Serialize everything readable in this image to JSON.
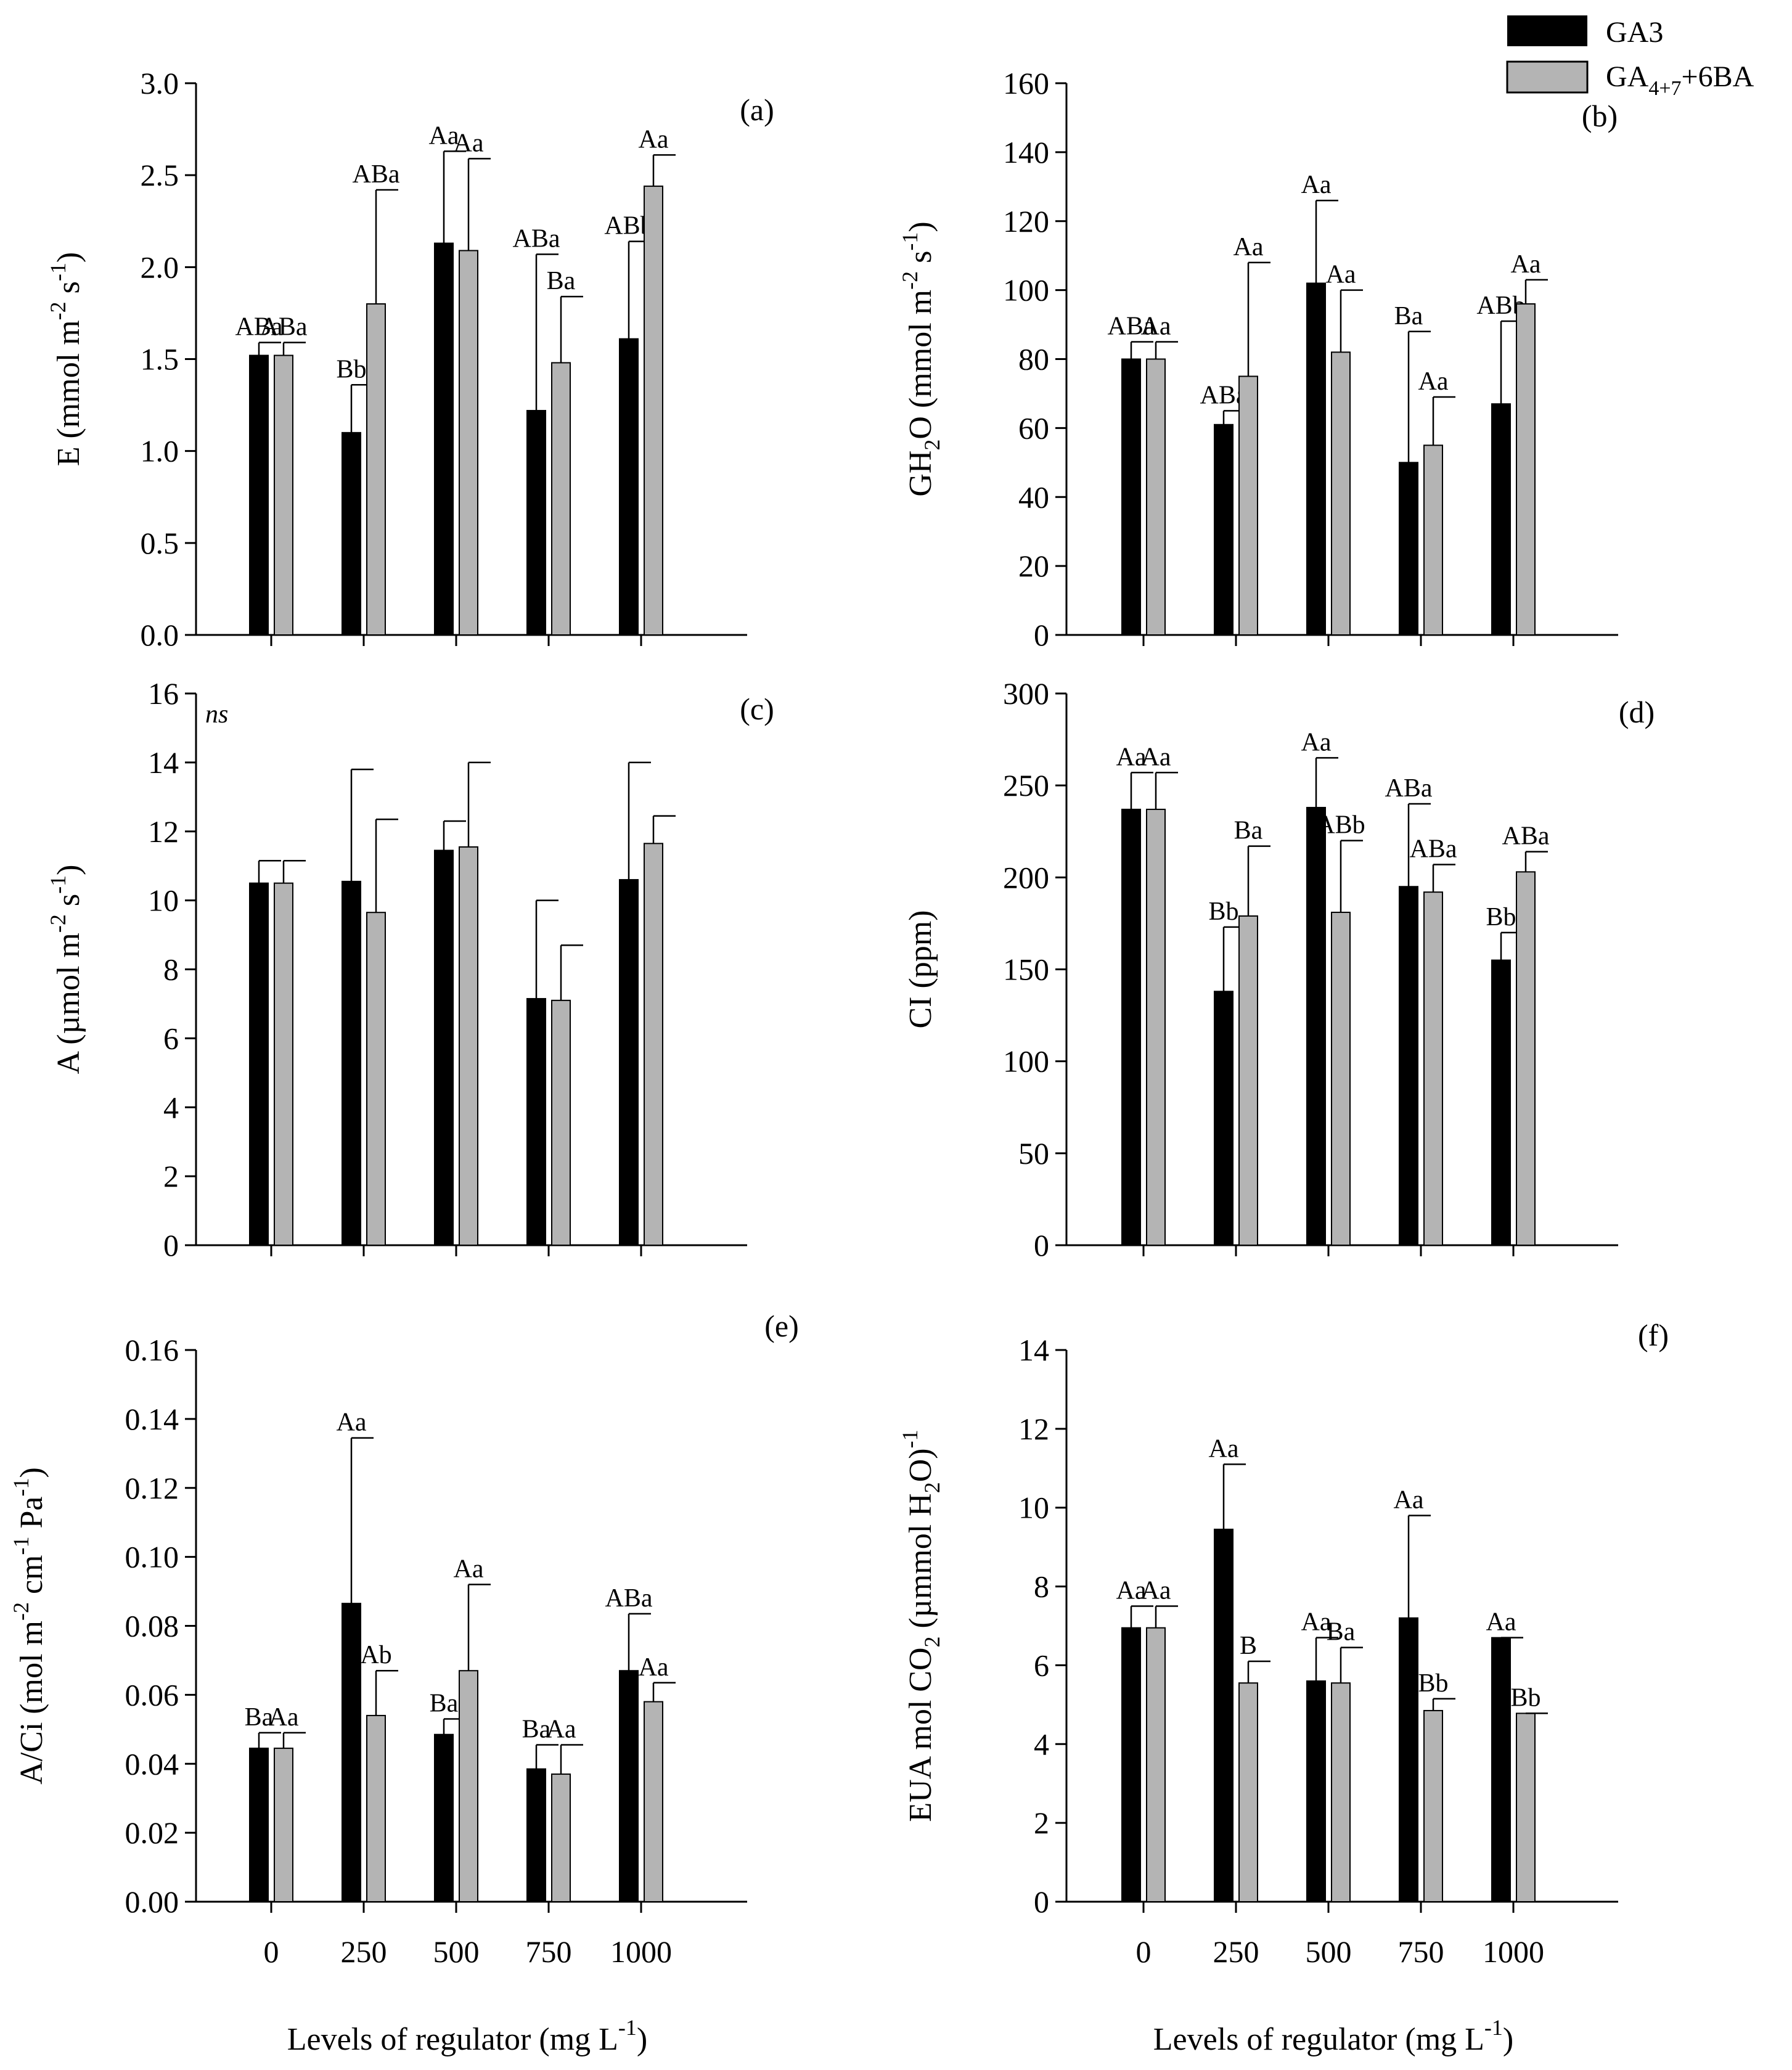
{
  "legend": {
    "series1": "GA3",
    "series2_main": "GA",
    "series2_sub": "4+7",
    "series2_rest": "+6BA",
    "colors": {
      "GA3": "#000000",
      "GA47_6BA": "#b4b4b4"
    }
  },
  "x_axis_title": {
    "main": "Levels of regulator (mg L",
    "sup": "-1",
    "close": ")"
  },
  "chart_data": [
    {
      "id": "a",
      "type": "bar",
      "letter": "(a)",
      "note": "",
      "ylabel": [
        [
          "E (mmol m",
          ""
        ],
        [
          "-2",
          "sup"
        ],
        [
          " s",
          ""
        ],
        [
          "-1",
          "sup"
        ],
        [
          ")",
          ""
        ]
      ],
      "categories": [
        "0",
        "250",
        "500",
        "750",
        "1000"
      ],
      "ylim": [
        0,
        3.0
      ],
      "yticks": [
        "0.0",
        "0.5",
        "1.0",
        "1.5",
        "2.0",
        "2.5",
        "3.0"
      ],
      "show_xticklabels": false,
      "series": [
        {
          "name": "GA3",
          "values": [
            1.52,
            1.1,
            2.13,
            1.22,
            1.61
          ],
          "errors": [
            0.07,
            0.26,
            0.5,
            0.85,
            0.53
          ],
          "labels": [
            "ABa",
            "Bb",
            "Aa",
            "ABa",
            "ABb"
          ]
        },
        {
          "name": "GA4+7+6BA",
          "values": [
            1.52,
            1.8,
            2.09,
            1.48,
            2.44
          ],
          "errors": [
            0.07,
            0.62,
            0.5,
            0.36,
            0.17
          ],
          "labels": [
            "ABa",
            "ABa",
            "Aa",
            "Ba",
            "Aa"
          ]
        }
      ]
    },
    {
      "id": "b",
      "type": "bar",
      "letter": "(b)",
      "note": "",
      "ylabel": [
        [
          "GH",
          ""
        ],
        [
          "2",
          "sub"
        ],
        [
          "O (mmol m",
          ""
        ],
        [
          "-2",
          "sup"
        ],
        [
          " s",
          ""
        ],
        [
          "-1",
          "sup"
        ],
        [
          ")",
          ""
        ]
      ],
      "categories": [
        "0",
        "250",
        "500",
        "750",
        "1000"
      ],
      "ylim": [
        0,
        160
      ],
      "yticks": [
        "0",
        "20",
        "40",
        "60",
        "80",
        "100",
        "120",
        "140",
        "160"
      ],
      "show_xticklabels": false,
      "series": [
        {
          "name": "GA3",
          "values": [
            80,
            61,
            102,
            50,
            67
          ],
          "errors": [
            5,
            4,
            24,
            38,
            24
          ],
          "labels": [
            "ABa",
            "ABa",
            "Aa",
            "Ba",
            "ABb"
          ]
        },
        {
          "name": "GA4+7+6BA",
          "values": [
            80,
            75,
            82,
            55,
            96
          ],
          "errors": [
            5,
            33,
            18,
            14,
            7
          ],
          "labels": [
            "Aa",
            "Aa",
            "Aa",
            "Aa",
            "Aa"
          ]
        }
      ]
    },
    {
      "id": "c",
      "type": "bar",
      "letter": "(c)",
      "note": "ns",
      "ylabel": [
        [
          "A (µmol m",
          ""
        ],
        [
          "-2",
          "sup"
        ],
        [
          " s",
          ""
        ],
        [
          "-1",
          "sup"
        ],
        [
          ")",
          ""
        ]
      ],
      "categories": [
        "0",
        "250",
        "500",
        "750",
        "1000"
      ],
      "ylim": [
        0,
        16
      ],
      "yticks": [
        "0",
        "2",
        "4",
        "6",
        "8",
        "10",
        "12",
        "14",
        "16"
      ],
      "show_xticklabels": false,
      "series": [
        {
          "name": "GA3",
          "values": [
            10.5,
            10.55,
            11.45,
            7.15,
            10.6
          ],
          "errors": [
            0.65,
            3.25,
            0.85,
            2.85,
            3.4
          ],
          "labels": [
            "",
            "",
            "",
            "",
            ""
          ]
        },
        {
          "name": "GA4+7+6BA",
          "values": [
            10.5,
            9.65,
            11.55,
            7.1,
            11.65
          ],
          "errors": [
            0.65,
            2.7,
            2.45,
            1.6,
            0.8
          ],
          "labels": [
            "",
            "",
            "",
            "",
            ""
          ]
        }
      ]
    },
    {
      "id": "d",
      "type": "bar",
      "letter": "(d)",
      "note": "",
      "ylabel": [
        [
          "CI (ppm)",
          ""
        ]
      ],
      "categories": [
        "0",
        "250",
        "500",
        "750",
        "1000"
      ],
      "ylim": [
        0,
        300
      ],
      "yticks": [
        "0",
        "50",
        "100",
        "150",
        "200",
        "250",
        "300"
      ],
      "show_xticklabels": false,
      "series": [
        {
          "name": "GA3",
          "values": [
            237,
            138,
            238,
            195,
            155
          ],
          "errors": [
            20,
            35,
            27,
            45,
            15
          ],
          "labels": [
            "Aa",
            "Bb",
            "Aa",
            "ABa",
            "Bb"
          ]
        },
        {
          "name": "GA4+7+6BA",
          "values": [
            237,
            179,
            181,
            192,
            203
          ],
          "errors": [
            20,
            38,
            39,
            15,
            11
          ],
          "labels": [
            "Aa",
            "Ba",
            "ABb",
            "ABa",
            "ABa"
          ]
        }
      ]
    },
    {
      "id": "e",
      "type": "bar",
      "letter": "(e)",
      "note": "",
      "ylabel": [
        [
          "A/Ci (mol m",
          ""
        ],
        [
          "-2",
          "sup"
        ],
        [
          " cm",
          ""
        ],
        [
          "-1",
          "sup"
        ],
        [
          " Pa",
          ""
        ],
        [
          "-1",
          "sup"
        ],
        [
          ")",
          ""
        ]
      ],
      "categories": [
        "0",
        "250",
        "500",
        "750",
        "1000"
      ],
      "ylim": [
        0,
        0.16
      ],
      "yticks": [
        "0.00",
        "0.02",
        "0.04",
        "0.06",
        "0.08",
        "0.10",
        "0.12",
        "0.14",
        "0.16"
      ],
      "show_xticklabels": true,
      "series": [
        {
          "name": "GA3",
          "values": [
            0.0445,
            0.0865,
            0.0485,
            0.0385,
            0.067
          ],
          "errors": [
            0.0045,
            0.048,
            0.0045,
            0.007,
            0.0165
          ],
          "labels": [
            "Ba",
            "Aa",
            "Ba",
            "Ba",
            "ABa"
          ]
        },
        {
          "name": "GA4+7+6BA",
          "values": [
            0.0445,
            0.054,
            0.067,
            0.037,
            0.058
          ],
          "errors": [
            0.0045,
            0.013,
            0.025,
            0.0085,
            0.0055
          ],
          "labels": [
            "Aa",
            "Ab",
            "Aa",
            "Aa",
            "Aa"
          ]
        }
      ]
    },
    {
      "id": "f",
      "type": "bar",
      "letter": "(f)",
      "note": "",
      "ylabel": [
        [
          "EUA mol CO",
          ""
        ],
        [
          "2",
          "sub"
        ],
        [
          " (µmmol H",
          ""
        ],
        [
          "2",
          "sub"
        ],
        [
          "O)",
          ""
        ],
        [
          "-1",
          "sup"
        ]
      ],
      "categories": [
        "0",
        "250",
        "500",
        "750",
        "1000"
      ],
      "ylim": [
        0,
        14
      ],
      "yticks": [
        "0",
        "2",
        "4",
        "6",
        "8",
        "10",
        "12",
        "14"
      ],
      "show_xticklabels": true,
      "series": [
        {
          "name": "GA3",
          "values": [
            6.95,
            9.45,
            5.6,
            7.2,
            6.7
          ],
          "errors": [
            0.55,
            1.65,
            1.1,
            2.6,
            0
          ],
          "labels": [
            "Aa",
            "Aa",
            "Aa",
            "Aa",
            "Aa"
          ]
        },
        {
          "name": "GA4+7+6BA",
          "values": [
            6.95,
            5.55,
            5.55,
            4.85,
            4.78
          ],
          "errors": [
            0.55,
            0.55,
            0.9,
            0.3,
            0
          ],
          "labels": [
            "Aa",
            "B",
            "Ba",
            "Bb",
            "Bb"
          ]
        }
      ]
    }
  ]
}
